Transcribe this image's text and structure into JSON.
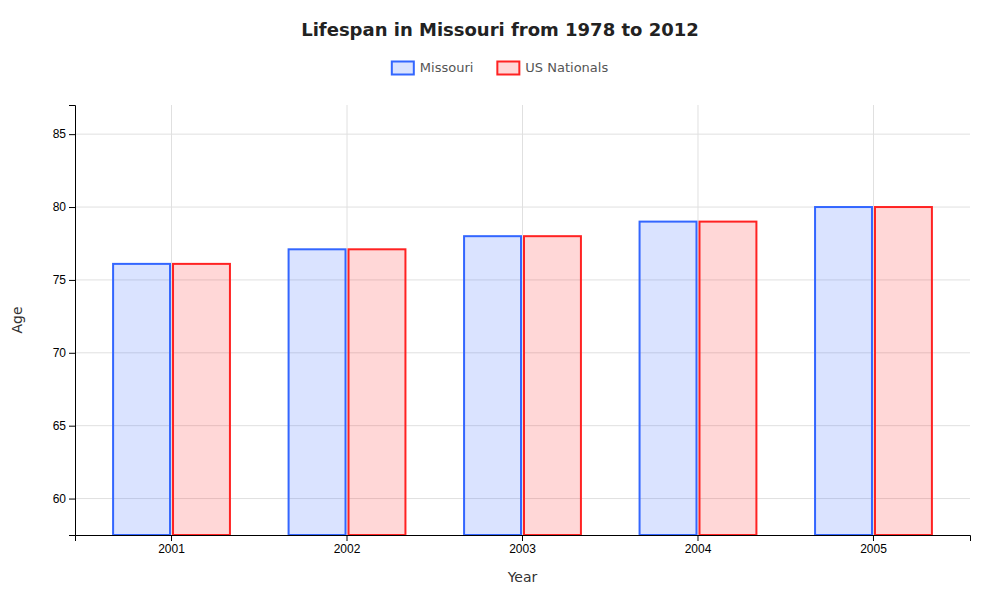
{
  "chart_data": {
    "type": "bar",
    "title": "Lifespan in Missouri from 1978 to 2012",
    "x_label": "Year",
    "y_label": "Age",
    "categories": [
      "2001",
      "2002",
      "2003",
      "2004",
      "2005"
    ],
    "series": [
      {
        "name": "Missouri",
        "color": "#3366ff",
        "values": [
          76.1,
          77.1,
          78.0,
          79.0,
          80.0
        ]
      },
      {
        "name": "US Nationals",
        "color": "#ff2222",
        "values": [
          76.1,
          77.1,
          78.0,
          79.0,
          80.0
        ]
      }
    ],
    "ylim": [
      57.5,
      87
    ],
    "yticks": [
      60,
      65,
      70,
      75,
      80,
      85
    ],
    "grid": true,
    "legend": "top"
  }
}
